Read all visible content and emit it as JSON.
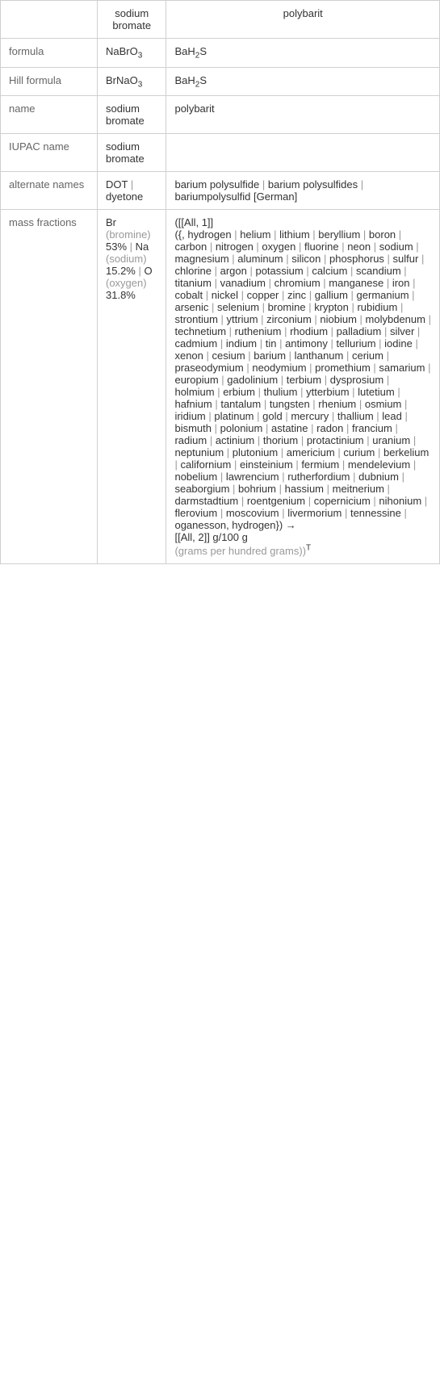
{
  "headers": {
    "col0": "",
    "col1": "sodium bromate",
    "col2": "polybarit"
  },
  "rows": {
    "formula": {
      "label": "formula",
      "c1": "NaBrO",
      "c1_sub": "3",
      "c2": "BaH",
      "c2_sub": "2",
      "c2_after": "S"
    },
    "hill": {
      "label": "Hill formula",
      "c1": "BrNaO",
      "c1_sub": "3",
      "c2": "BaH",
      "c2_sub": "2",
      "c2_after": "S"
    },
    "name": {
      "label": "name",
      "c1": "sodium bromate",
      "c2": "polybarit"
    },
    "iupac": {
      "label": "IUPAC name",
      "c1": "sodium bromate",
      "c2": ""
    },
    "alt": {
      "label": "alternate names",
      "c1_parts": [
        "DOT",
        "dyetone"
      ],
      "c2_parts": [
        "barium polysulfide",
        "barium polysulfides",
        "bariumpolysulfid [German]"
      ]
    },
    "mass": {
      "label": "mass fractions",
      "c1": [
        {
          "sym": "Br",
          "paren": "(bromine)",
          "val": "53%"
        },
        {
          "sym": "Na",
          "paren": "(sodium)",
          "val": "15.2%"
        },
        {
          "sym": "O",
          "paren": "(oxygen)",
          "val": "31.8%"
        }
      ],
      "c2_prefix": "([[All, 1]]",
      "c2_open": "({, hydrogen",
      "c2_elements": [
        "helium",
        "lithium",
        "beryllium",
        "boron",
        "carbon",
        "nitrogen",
        "oxygen",
        "fluorine",
        "neon",
        "sodium",
        "magnesium",
        "aluminum",
        "silicon",
        "phosphorus",
        "sulfur",
        "chlorine",
        "argon",
        "potassium",
        "calcium",
        "scandium",
        "titanium",
        "vanadium",
        "chromium",
        "manganese",
        "iron",
        "cobalt",
        "nickel",
        "copper",
        "zinc",
        "gallium",
        "germanium",
        "arsenic",
        "selenium",
        "bromine",
        "krypton",
        "rubidium",
        "strontium",
        "yttrium",
        "zirconium",
        "niobium",
        "molybdenum",
        "technetium",
        "ruthenium",
        "rhodium",
        "palladium",
        "silver",
        "cadmium",
        "indium",
        "tin",
        "antimony",
        "tellurium",
        "iodine",
        "xenon",
        "cesium",
        "barium",
        "lanthanum",
        "cerium",
        "praseodymium",
        "neodymium",
        "promethium",
        "samarium",
        "europium",
        "gadolinium",
        "terbium",
        "dysprosium",
        "holmium",
        "erbium",
        "thulium",
        "ytterbium",
        "lutetium",
        "hafnium",
        "tantalum",
        "tungsten",
        "rhenium",
        "osmium",
        "iridium",
        "platinum",
        "gold",
        "mercury",
        "thallium",
        "lead",
        "bismuth",
        "polonium",
        "astatine",
        "radon",
        "francium",
        "radium",
        "actinium",
        "thorium",
        "protactinium",
        "uranium",
        "neptunium",
        "plutonium",
        "americium",
        "curium",
        "berkelium",
        "californium",
        "einsteinium",
        "fermium",
        "mendelevium",
        "nobelium",
        "lawrencium",
        "rutherfordium",
        "dubnium",
        "seaborgium",
        "bohrium",
        "hassium",
        "meitnerium",
        "darmstadtium",
        "roentgenium",
        "copernicium",
        "nihonium",
        "flerovium",
        "moscovium",
        "livermorium",
        "tennessine"
      ],
      "c2_last": "oganesson, hydrogen}) →",
      "c2_all2": "[[All, 2]] g/100 g",
      "c2_tail": "(grams per hundred grams))",
      "c2_sup": "T"
    }
  },
  "sep": " | "
}
